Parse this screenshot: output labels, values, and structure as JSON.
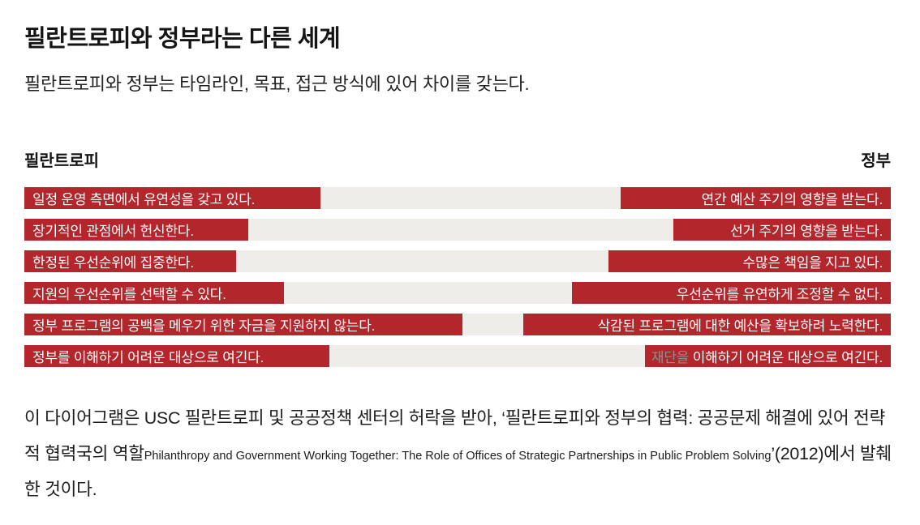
{
  "page": {
    "title": "필란트로피와 정부라는 다른 세계",
    "subtitle": "필란트로피와 정부는 타임라인, 목표, 접근 방식에 있어 차이를 갖는다."
  },
  "chart": {
    "left_header": "필란트로피",
    "right_header": "정부",
    "bar_color": "#b2262c",
    "track_color": "#efedea",
    "rows": [
      {
        "left": {
          "label": "일정 운영 측면에서 유연성을 갖고 있다.",
          "width": "34.2%"
        },
        "right": {
          "label": "연간 예산 주기의 영향을 받는다.",
          "width": "31.2%"
        }
      },
      {
        "left": {
          "label": "장기적인 관점에서 헌신한다.",
          "width": "25.8%"
        },
        "right": {
          "label": "선거 주기의 영향을 받는다.",
          "width": "25.1%"
        }
      },
      {
        "left": {
          "label": "한정된 우선순위에 집중한다.",
          "width": "24.4%"
        },
        "right": {
          "label": "수많은 책임을 지고 있다.",
          "width": "32.6%"
        }
      },
      {
        "left": {
          "label": "지원의 우선순위를 선택할 수 있다.",
          "width": "30.0%"
        },
        "right": {
          "label": "우선순위를 유연하게 조정할 수 없다.",
          "width": "36.8%"
        }
      },
      {
        "left": {
          "label": "정부 프로그램의 공백을 메우기 위한 자금을 지원하지 않는다.",
          "width": "50.6%"
        },
        "right": {
          "label": "삭감된 프로그램에 대한 예산을 확보하려 노력한다.",
          "width": "42.4%"
        }
      },
      {
        "left": {
          "label": "정부를 이해하기 어려운 대상으로 여긴다.",
          "width": "35.2%"
        },
        "right": {
          "prefix": "재단을 ",
          "label": "이해하기 어려운 대상으로 여긴다.",
          "width": "28.4%"
        }
      }
    ]
  },
  "footer": {
    "part1_ko": "이 다이어그램은 USC 필란트로피 및 공공정책 센터의 허락을 받아, ‘필란트로피와 정부의 협력: 공공문제 해결에 있어 전략적 협력국의 역할",
    "part2_en": "Philanthropy and Government Working Together: The Role of Offices of Strategic Partnerships in Public Problem Solving",
    "part3_ko": "’(2012)에서 발췌한 것이다."
  }
}
